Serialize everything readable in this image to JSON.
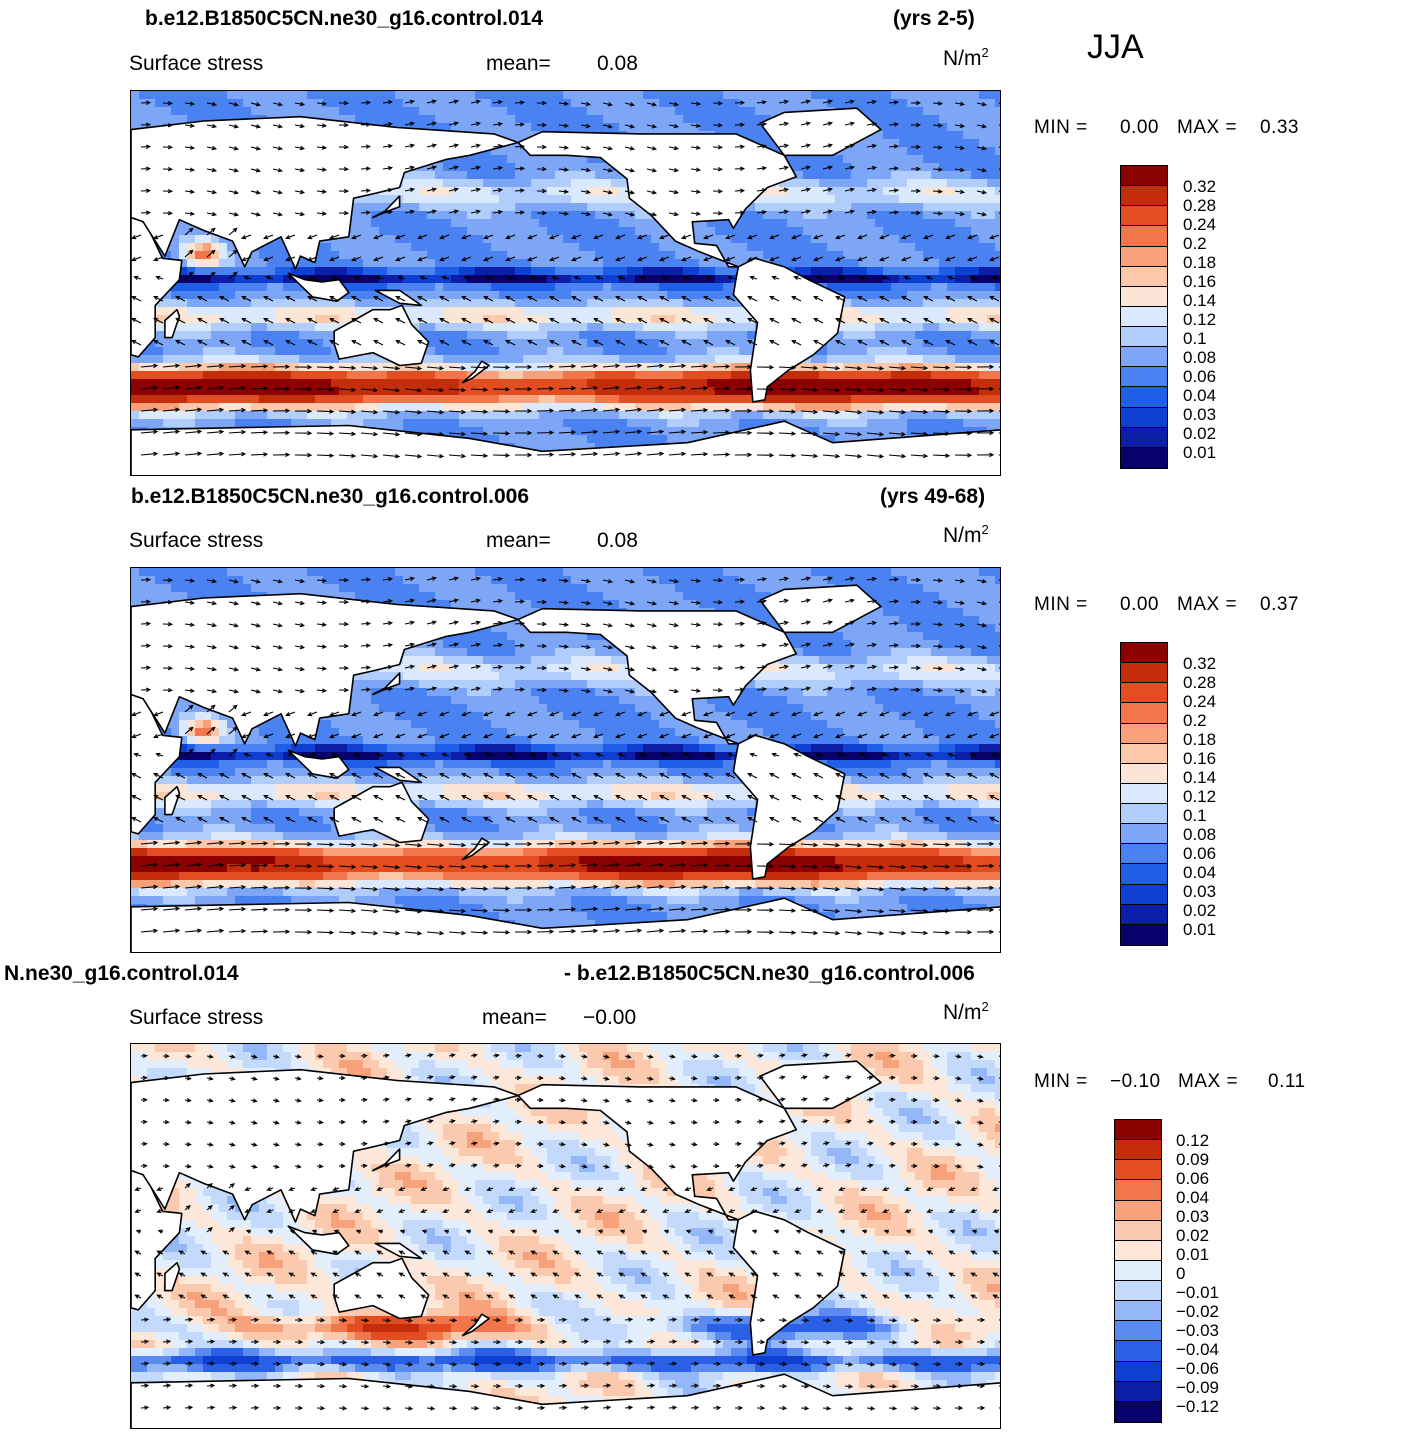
{
  "season": "JJA",
  "panels": [
    {
      "title_left": "b.e12.B1850C5CN.ne30_g16.control.014",
      "title_right": "(yrs 2-5)",
      "field": "Surface stress",
      "mean_label": "mean=",
      "mean_value": "0.08",
      "units": "N/m",
      "units_exp": "2",
      "min_label": "MIN =",
      "min_value": "0.00",
      "max_label": "MAX =",
      "max_value": "0.33",
      "colorbar": [
        "0.32",
        "0.28",
        "0.24",
        "0.2",
        "0.18",
        "0.16",
        "0.14",
        "0.12",
        "0.1",
        "0.08",
        "0.06",
        "0.04",
        "0.03",
        "0.02",
        "0.01"
      ]
    },
    {
      "title_left": "b.e12.B1850C5CN.ne30_g16.control.006",
      "title_right": "(yrs 49-68)",
      "field": "Surface stress",
      "mean_label": "mean=",
      "mean_value": "0.08",
      "units": "N/m",
      "units_exp": "2",
      "min_label": "MIN =",
      "min_value": "0.00",
      "max_label": "MAX =",
      "max_value": "0.37",
      "colorbar": [
        "0.32",
        "0.28",
        "0.24",
        "0.2",
        "0.18",
        "0.16",
        "0.14",
        "0.12",
        "0.1",
        "0.08",
        "0.06",
        "0.04",
        "0.03",
        "0.02",
        "0.01"
      ]
    },
    {
      "title_left": "N.ne30_g16.control.014",
      "title_right": "- b.e12.B1850C5CN.ne30_g16.control.006",
      "field": "Surface stress",
      "mean_label": "mean=",
      "mean_value": "−0.00",
      "units": "N/m",
      "units_exp": "2",
      "min_label": "MIN =",
      "min_value": "−0.10",
      "max_label": "MAX =",
      "max_value": "0.11",
      "colorbar": [
        "0.12",
        "0.09",
        "0.06",
        "0.04",
        "0.03",
        "0.02",
        "0.01",
        "0",
        "−0.01",
        "−0.02",
        "−0.03",
        "−0.04",
        "−0.06",
        "−0.09",
        "−0.12"
      ]
    }
  ],
  "colors": {
    "sequential": [
      "#f2f2f2",
      "#08006b",
      "#0a1ea8",
      "#0f3fd1",
      "#1f5fe8",
      "#4a82f2",
      "#7ea6f7",
      "#b0cdfb",
      "#dbe9fd",
      "#fbe5d6",
      "#fbc8ab",
      "#f7a07a",
      "#f2754b",
      "#e34d22",
      "#c42d0c",
      "#8b0000"
    ],
    "diverging": [
      "#08006b",
      "#0a1ea8",
      "#0f3fd1",
      "#2a60e6",
      "#5b8bf0",
      "#94b8f7",
      "#c4dafc",
      "#e3eefd",
      "#fde7d8",
      "#fbc9ad",
      "#f8a27c",
      "#f2764c",
      "#e34d22",
      "#c42d0c",
      "#8b0000"
    ],
    "land": "#ffffff"
  }
}
